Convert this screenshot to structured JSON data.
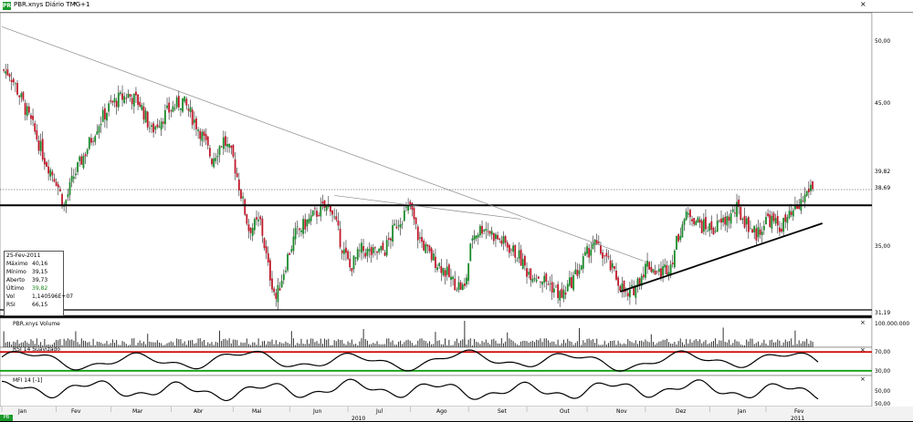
{
  "window": {
    "title": "PBR.xnys Diário TMG+1",
    "dropdown_icon": "chevron-down-icon",
    "close_symbol": "×",
    "logo_text": "PR"
  },
  "colors": {
    "background": "#ffffff",
    "bull": "#1a8a2a",
    "bear": "#c0182a",
    "resistance": "#000000",
    "rsi_upper": "#d01010",
    "rsi_lower": "#10a010",
    "trendline": "#888888"
  },
  "info": {
    "date": "25-Fev-2011",
    "rows": [
      {
        "label": "Máximo",
        "value": "40,16"
      },
      {
        "label": "Mínimo",
        "value": "39,15"
      },
      {
        "label": "Aberto",
        "value": "39,73"
      },
      {
        "label": "Último",
        "value": "39,82"
      },
      {
        "label": "Vol",
        "value": "1,140596E+07"
      },
      {
        "label": "RSI",
        "value": "66,15"
      }
    ]
  },
  "panels": {
    "volume_title": "PBR.xnys Volume",
    "rsi_title": "RSI 14 Suavizado",
    "mfi_title": "MFI 14 [-1]"
  },
  "chart_data": [
    {
      "type": "candlestick",
      "title": "PBR.xnys Diário TMG+1",
      "y_axis_ticks": [
        "50,00",
        "45,00",
        "35,00"
      ],
      "ylim": [
        30.8,
        52.5
      ],
      "price_tags": {
        "last": "39,82",
        "resistance": "38,69",
        "low": "31,19"
      },
      "resistance_level": 38.69,
      "low_level": 31.19,
      "x_tick_labels": [
        "Jan",
        "Fev",
        "Mar",
        "Abr",
        "Mai",
        "Jun",
        "Jul",
        "Ago",
        "Set",
        "Out",
        "Nov",
        "Dez",
        "Jan",
        "Fev"
      ],
      "year_labels": [
        "2010",
        "2011"
      ],
      "close_path": [
        [
          "2010-01-04",
          48.4
        ],
        [
          "2010-01-08",
          48.2
        ],
        [
          "2010-01-14",
          46.3
        ],
        [
          "2010-01-20",
          44.3
        ],
        [
          "2010-01-26",
          42.0
        ],
        [
          "2010-02-01",
          40.5
        ],
        [
          "2010-02-05",
          38.6
        ],
        [
          "2010-02-10",
          40.8
        ],
        [
          "2010-02-16",
          42.5
        ],
        [
          "2010-02-22",
          44.4
        ],
        [
          "2010-03-01",
          45.9
        ],
        [
          "2010-03-05",
          46.3
        ],
        [
          "2010-03-10",
          46.6
        ],
        [
          "2010-03-16",
          46.0
        ],
        [
          "2010-03-22",
          44.0
        ],
        [
          "2010-03-26",
          44.8
        ],
        [
          "2010-04-01",
          45.6
        ],
        [
          "2010-04-07",
          46.2
        ],
        [
          "2010-04-12",
          45.0
        ],
        [
          "2010-04-16",
          44.0
        ],
        [
          "2010-04-22",
          42.0
        ],
        [
          "2010-04-28",
          43.4
        ],
        [
          "2010-05-03",
          42.0
        ],
        [
          "2010-05-07",
          39.5
        ],
        [
          "2010-05-11",
          37.0
        ],
        [
          "2010-05-17",
          37.5
        ],
        [
          "2010-05-21",
          34.2
        ],
        [
          "2010-05-25",
          32.0
        ],
        [
          "2010-05-31",
          35.0
        ],
        [
          "2010-06-04",
          36.6
        ],
        [
          "2010-06-10",
          37.5
        ],
        [
          "2010-06-16",
          38.3
        ],
        [
          "2010-06-22",
          38.7
        ],
        [
          "2010-06-28",
          35.7
        ],
        [
          "2010-07-02",
          34.2
        ],
        [
          "2010-07-08",
          35.5
        ],
        [
          "2010-07-14",
          35.2
        ],
        [
          "2010-07-20",
          35.5
        ],
        [
          "2010-07-26",
          37.4
        ],
        [
          "2010-08-02",
          38.6
        ],
        [
          "2010-08-06",
          36.5
        ],
        [
          "2010-08-12",
          35.1
        ],
        [
          "2010-08-18",
          34.3
        ],
        [
          "2010-08-24",
          33.2
        ],
        [
          "2010-08-30",
          32.7
        ],
        [
          "2010-09-03",
          36.5
        ],
        [
          "2010-09-09",
          37.2
        ],
        [
          "2010-09-15",
          36.4
        ],
        [
          "2010-09-21",
          35.8
        ],
        [
          "2010-09-27",
          35.0
        ],
        [
          "2010-10-01",
          34.0
        ],
        [
          "2010-10-07",
          33.6
        ],
        [
          "2010-10-13",
          33.0
        ],
        [
          "2010-10-19",
          32.1
        ],
        [
          "2010-10-25",
          33.5
        ],
        [
          "2010-10-29",
          34.4
        ],
        [
          "2010-11-04",
          36.0
        ],
        [
          "2010-11-10",
          35.0
        ],
        [
          "2010-11-16",
          33.5
        ],
        [
          "2010-11-22",
          32.0
        ],
        [
          "2010-11-26",
          33.0
        ],
        [
          "2010-12-02",
          34.5
        ],
        [
          "2010-12-08",
          33.8
        ],
        [
          "2010-12-14",
          34.5
        ],
        [
          "2010-12-20",
          37.5
        ],
        [
          "2010-12-24",
          38.1
        ],
        [
          "2010-12-30",
          37.2
        ],
        [
          "2011-01-05",
          37.0
        ],
        [
          "2011-01-11",
          37.6
        ],
        [
          "2011-01-17",
          38.4
        ],
        [
          "2011-01-21",
          37.6
        ],
        [
          "2011-01-27",
          36.6
        ],
        [
          "2011-02-02",
          37.8
        ],
        [
          "2011-02-08",
          37.1
        ],
        [
          "2011-02-14",
          37.9
        ],
        [
          "2011-02-18",
          38.6
        ],
        [
          "2011-02-24",
          40.1
        ],
        [
          "2011-02-25",
          39.82
        ]
      ],
      "trendlines": [
        {
          "from": [
            "2010-01-04",
            51.5
          ],
          "to": [
            "2010-11-30",
            34.7
          ],
          "style": "thin-gray"
        },
        {
          "from": [
            "2010-06-24",
            39.4
          ],
          "to": [
            "2010-09-28",
            37.7
          ],
          "style": "thin-gray"
        },
        {
          "from": [
            "2010-11-18",
            32.5
          ],
          "to": [
            "2011-03-02",
            37.4
          ],
          "style": "thick-black"
        }
      ]
    },
    {
      "type": "bar",
      "title": "PBR.xnys Volume",
      "y_axis_ticks": [
        "100.000.000"
      ]
    },
    {
      "type": "line",
      "title": "RSI 14 Suavizado",
      "y_axis_ticks": [
        "70,00",
        "30,00"
      ],
      "levels": [
        70,
        30
      ],
      "ylim": [
        20,
        80
      ]
    },
    {
      "type": "line",
      "title": "MFI 14 [-1]",
      "y_axis_ticks": [
        "50,00",
        "50,00"
      ],
      "ylim": [
        20,
        80
      ]
    }
  ]
}
